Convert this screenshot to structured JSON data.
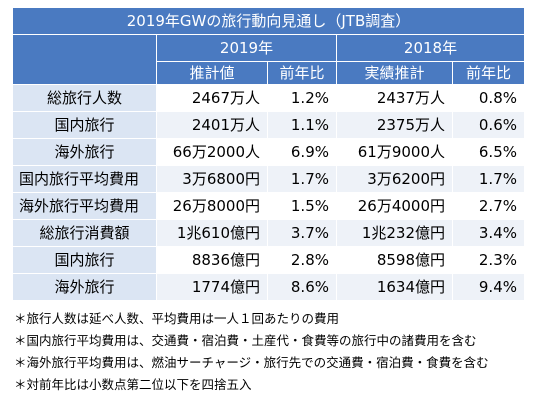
{
  "title": "2019年GWの旅行動向見通し（JTB調査）",
  "year2019": "2019年",
  "year2018": "2018年",
  "col_headers": [
    "推計値",
    "前年比",
    "実績推計",
    "前年比"
  ],
  "rows": [
    {
      "label": "総旅行人数",
      "v2019": "2467万人",
      "y2019": "1.2%",
      "v2018": "2437万人",
      "y2018": "0.8%"
    },
    {
      "label": "国内旅行",
      "v2019": "2401万人",
      "y2019": "1.1%",
      "v2018": "2375万人",
      "y2018": "0.6%"
    },
    {
      "label": "海外旅行",
      "v2019": "66万2000人",
      "y2019": "6.9%",
      "v2018": "61万9000人",
      "y2018": "6.5%"
    },
    {
      "label": "国内旅行平均費用",
      "v2019": "3万6800円",
      "y2019": "1.7%",
      "v2018": "3万6200円",
      "y2018": "1.7%"
    },
    {
      "label": "海外旅行平均費用",
      "v2019": "26万8000円",
      "y2019": "1.5%",
      "v2018": "26万4000円",
      "y2018": "2.7%"
    },
    {
      "label": "総旅行消費額",
      "v2019": "1兆610億円",
      "y2019": "3.7%",
      "v2018": "1兆232億円",
      "y2018": "3.4%"
    },
    {
      "label": "国内旅行",
      "v2019": "8836億円",
      "y2019": "2.8%",
      "v2018": "8598億円",
      "y2018": "2.3%"
    },
    {
      "label": "海外旅行",
      "v2019": "1774億円",
      "y2019": "8.6%",
      "v2018": "1634億円",
      "y2018": "9.4%"
    }
  ],
  "notes": [
    "＊旅行人数は延べ人数、平均費用は一人１回あたりの費用",
    "＊国内旅行平均費用は、交通費・宿泊費・土産代・食費等の旅行中の諸費用を含む",
    "＊海外旅行平均費用は、燃油サーチャージ・旅行先での交通費・宿泊費・食費を含む",
    "＊対前年比は小数点第二位以下を四捨五入"
  ]
}
